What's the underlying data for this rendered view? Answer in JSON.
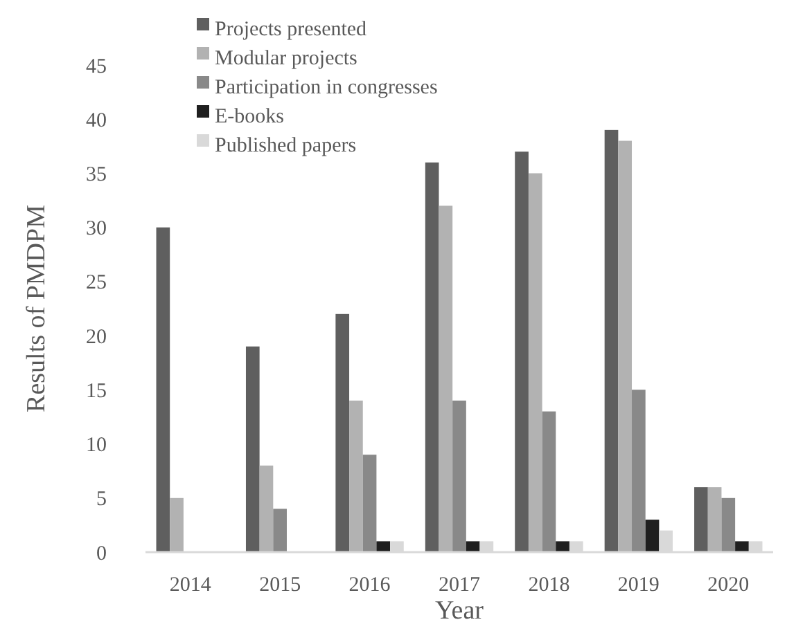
{
  "chart_data": {
    "type": "bar",
    "xlabel": "Year",
    "ylabel": "Results of PMDPM",
    "categories": [
      "2014",
      "2015",
      "2016",
      "2017",
      "2018",
      "2019",
      "2020"
    ],
    "series": [
      {
        "name": "Projects presented",
        "color": "#5f5f5f",
        "values": [
          30,
          19,
          22,
          36,
          37,
          39,
          6
        ]
      },
      {
        "name": "Modular projects",
        "color": "#b2b2b2",
        "values": [
          5,
          8,
          14,
          32,
          35,
          38,
          6
        ]
      },
      {
        "name": "Participation in congresses",
        "color": "#898989",
        "values": [
          0,
          4,
          9,
          14,
          13,
          15,
          5
        ]
      },
      {
        "name": "E-books",
        "color": "#1f1f1f",
        "values": [
          0,
          0,
          1,
          1,
          1,
          3,
          1
        ]
      },
      {
        "name": "Published papers",
        "color": "#d9d9d9",
        "values": [
          0,
          0,
          1,
          1,
          1,
          2,
          1
        ]
      }
    ],
    "ylim": [
      0,
      45
    ],
    "yticks": [
      0,
      5,
      10,
      15,
      20,
      25,
      30,
      35,
      40,
      45
    ],
    "grid": false,
    "legend": "top left"
  }
}
